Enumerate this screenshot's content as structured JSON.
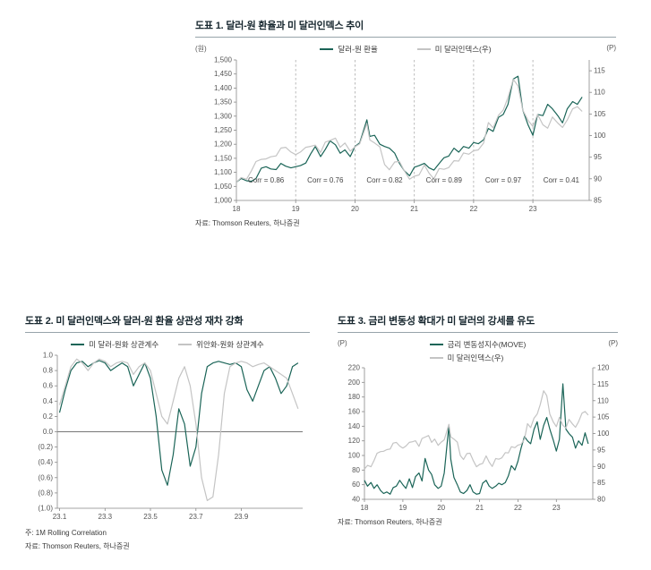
{
  "page": {
    "background": "#ffffff"
  },
  "colors": {
    "primary_line": "#1a6457",
    "secondary_line": "#c4c4c4",
    "grid": "#aaaaaa"
  },
  "chart_data": [
    {
      "type": "line",
      "title": "도표 1. 달러-원 환율과 미 달러인덱스 추이",
      "source": "자료: Thomson Reuters, 하나증권",
      "unit_left": "(원)",
      "unit_right": "(P)",
      "legend_position": "top-center",
      "grid": "vertical-dashed",
      "xlim": [
        2018,
        2023.95
      ],
      "ylim": [
        1000,
        1500
      ],
      "y2lim": [
        85,
        117.5
      ],
      "xticks": [
        {
          "v": 2018,
          "t": "18"
        },
        {
          "v": 2019,
          "t": "19"
        },
        {
          "v": 2020,
          "t": "20"
        },
        {
          "v": 2021,
          "t": "21"
        },
        {
          "v": 2022,
          "t": "22"
        },
        {
          "v": 2023,
          "t": "23"
        }
      ],
      "yticks": [
        {
          "v": 1000,
          "t": "1,000"
        },
        {
          "v": 1050,
          "t": "1,050"
        },
        {
          "v": 1100,
          "t": "1,100"
        },
        {
          "v": 1150,
          "t": "1,150"
        },
        {
          "v": 1200,
          "t": "1,200"
        },
        {
          "v": 1250,
          "t": "1,250"
        },
        {
          "v": 1300,
          "t": "1,300"
        },
        {
          "v": 1350,
          "t": "1,350"
        },
        {
          "v": 1400,
          "t": "1,400"
        },
        {
          "v": 1450,
          "t": "1,450"
        },
        {
          "v": 1500,
          "t": "1,500"
        }
      ],
      "y2ticks": [
        {
          "v": 85,
          "t": "85"
        },
        {
          "v": 90,
          "t": "90"
        },
        {
          "v": 95,
          "t": "95"
        },
        {
          "v": 100,
          "t": "100"
        },
        {
          "v": 105,
          "t": "105"
        },
        {
          "v": 110,
          "t": "110"
        },
        {
          "v": 115,
          "t": "115"
        }
      ],
      "vlines": [
        2019,
        2020,
        2021,
        2022,
        2023
      ],
      "axes": {
        "left": true,
        "right": true,
        "bottom": true
      },
      "annotations": [
        {
          "x": 2018.5,
          "y": 1063,
          "t": "Corr = 0.86"
        },
        {
          "x": 2019.5,
          "y": 1063,
          "t": "Corr = 0.76"
        },
        {
          "x": 2020.5,
          "y": 1063,
          "t": "Corr = 0.82"
        },
        {
          "x": 2021.5,
          "y": 1063,
          "t": "Corr = 0.89"
        },
        {
          "x": 2022.5,
          "y": 1063,
          "t": "Corr = 0.97"
        },
        {
          "x": 2023.48,
          "y": 1063,
          "t": "Corr = 0.41"
        }
      ],
      "x": [
        2018.0,
        2018.08,
        2018.17,
        2018.25,
        2018.33,
        2018.42,
        2018.5,
        2018.58,
        2018.67,
        2018.75,
        2018.83,
        2018.92,
        2019.0,
        2019.08,
        2019.17,
        2019.25,
        2019.33,
        2019.42,
        2019.5,
        2019.58,
        2019.67,
        2019.75,
        2019.83,
        2019.92,
        2020.0,
        2020.08,
        2020.2,
        2020.25,
        2020.33,
        2020.42,
        2020.5,
        2020.58,
        2020.67,
        2020.75,
        2020.83,
        2020.92,
        2021.0,
        2021.08,
        2021.17,
        2021.25,
        2021.33,
        2021.42,
        2021.5,
        2021.58,
        2021.67,
        2021.75,
        2021.83,
        2021.92,
        2022.0,
        2022.08,
        2022.17,
        2022.25,
        2022.33,
        2022.42,
        2022.5,
        2022.58,
        2022.67,
        2022.75,
        2022.83,
        2022.92,
        2023.0,
        2023.08,
        2023.17,
        2023.25,
        2023.33,
        2023.42,
        2023.5,
        2023.58,
        2023.67,
        2023.75,
        2023.83
      ],
      "series": [
        {
          "name": "달러-원 환율",
          "color": "#1a6457",
          "axis": "left",
          "y": [
            1065,
            1078,
            1070,
            1068,
            1078,
            1115,
            1120,
            1112,
            1110,
            1132,
            1122,
            1116,
            1120,
            1124,
            1133,
            1165,
            1192,
            1156,
            1182,
            1212,
            1198,
            1168,
            1180,
            1156,
            1192,
            1205,
            1287,
            1228,
            1232,
            1200,
            1192,
            1186,
            1168,
            1132,
            1106,
            1088,
            1118,
            1124,
            1132,
            1116,
            1108,
            1132,
            1152,
            1158,
            1186,
            1172,
            1192,
            1186,
            1206,
            1202,
            1216,
            1256,
            1246,
            1296,
            1306,
            1342,
            1432,
            1442,
            1322,
            1268,
            1232,
            1306,
            1302,
            1342,
            1326,
            1302,
            1276,
            1326,
            1352,
            1342,
            1368
          ]
        },
        {
          "name": "미 달러인덱스(우)",
          "color": "#c4c4c4",
          "axis": "right",
          "y": [
            89.2,
            90.3,
            89.9,
            91.8,
            94,
            94.5,
            94.6,
            95.1,
            95.3,
            97.1,
            97.3,
            96.2,
            95.6,
            96.2,
            97.3,
            97.5,
            97.8,
            96.1,
            98.5,
            98.9,
            99.4,
            97.3,
            98.3,
            96.4,
            97.4,
            98.1,
            102.8,
            99,
            98.3,
            97.4,
            93.3,
            92.1,
            93.9,
            94,
            91.9,
            89.9,
            90.6,
            90.9,
            93.2,
            91.3,
            90,
            92.4,
            92.2,
            92.6,
            94.2,
            94.1,
            96,
            95.7,
            96.5,
            96.7,
            98.3,
            103,
            101.8,
            104.7,
            105.9,
            108.8,
            113,
            111.5,
            105.9,
            103.5,
            102.1,
            104.9,
            102.5,
            101.7,
            104.3,
            102.9,
            101.9,
            103.6,
            106.2,
            106.7,
            105.6
          ]
        }
      ]
    },
    {
      "type": "line",
      "title": "도표 2. 미 달러인덱스와 달러-원 환율 상관성 재차 강화",
      "note": "주: 1M Rolling Correlation",
      "source": "자료: Thomson Reuters, 하나증권",
      "legend_position": "top-center",
      "grid": "zero-line",
      "xlim": [
        0.9,
        11.7
      ],
      "ylim": [
        -1,
        1
      ],
      "xticks": [
        {
          "v": 1,
          "t": "23.1"
        },
        {
          "v": 3,
          "t": "23.3"
        },
        {
          "v": 5,
          "t": "23.5"
        },
        {
          "v": 7,
          "t": "23.7"
        },
        {
          "v": 9,
          "t": "23.9"
        }
      ],
      "yticks": [
        {
          "v": 1,
          "t": "1.0"
        },
        {
          "v": 0.8,
          "t": "0.8"
        },
        {
          "v": 0.6,
          "t": "0.6"
        },
        {
          "v": 0.4,
          "t": "0.4"
        },
        {
          "v": 0.2,
          "t": "0.2"
        },
        {
          "v": 0,
          "t": "0.0"
        },
        {
          "v": -0.2,
          "t": "(0.2)"
        },
        {
          "v": -0.4,
          "t": "(0.4)"
        },
        {
          "v": -0.6,
          "t": "(0.6)"
        },
        {
          "v": -0.8,
          "t": "(0.8)"
        },
        {
          "v": -1,
          "t": "(1.0)"
        }
      ],
      "hlines": [
        0
      ],
      "axes": {
        "left": true,
        "bottom": true
      },
      "x": [
        1,
        1.25,
        1.5,
        1.75,
        2,
        2.25,
        2.5,
        2.75,
        3,
        3.25,
        3.5,
        3.75,
        4,
        4.25,
        4.5,
        4.75,
        5,
        5.25,
        5.5,
        5.75,
        6,
        6.25,
        6.5,
        6.75,
        7,
        7.25,
        7.5,
        7.75,
        8,
        8.25,
        8.5,
        8.75,
        9,
        9.25,
        9.5,
        9.75,
        10,
        10.25,
        10.5,
        10.75,
        11,
        11.25,
        11.5
      ],
      "series": [
        {
          "name": "미 달러-원화 상관계수",
          "color": "#1a6457",
          "axis": "left",
          "y": [
            0.25,
            0.55,
            0.8,
            0.9,
            0.92,
            0.85,
            0.9,
            0.93,
            0.9,
            0.8,
            0.85,
            0.9,
            0.85,
            0.6,
            0.75,
            0.9,
            0.7,
            0.2,
            -0.5,
            -0.7,
            -0.3,
            0.3,
            0.1,
            -0.45,
            -0.2,
            0.5,
            0.85,
            0.9,
            0.92,
            0.9,
            0.88,
            0.9,
            0.85,
            0.55,
            0.4,
            0.6,
            0.8,
            0.85,
            0.7,
            0.5,
            0.6,
            0.85,
            0.9
          ]
        },
        {
          "name": "위안화-원화 상관계수",
          "color": "#c4c4c4",
          "axis": "left",
          "y": [
            0.35,
            0.6,
            0.85,
            0.95,
            0.9,
            0.8,
            0.9,
            0.95,
            0.92,
            0.85,
            0.9,
            0.92,
            0.9,
            0.75,
            0.85,
            0.9,
            0.8,
            0.5,
            0.2,
            0.1,
            0.4,
            0.7,
            0.85,
            0.6,
            0.1,
            -0.6,
            -0.9,
            -0.85,
            -0.3,
            0.5,
            0.85,
            0.9,
            0.92,
            0.9,
            0.85,
            0.88,
            0.9,
            0.85,
            0.8,
            0.75,
            0.7,
            0.5,
            0.3
          ]
        }
      ]
    },
    {
      "type": "line",
      "title": "도표 3. 금리 변동성 확대가 미 달러의 강세를 유도",
      "source": "자료: Thomson Reuters, 하나증권",
      "unit_left": "(P)",
      "unit_right": "(P)",
      "legend_position": "top-center-stacked",
      "grid": "none",
      "xlim": [
        2018,
        2023.95
      ],
      "ylim": [
        40,
        220
      ],
      "y2lim": [
        80,
        120
      ],
      "xticks": [
        {
          "v": 2018,
          "t": "18"
        },
        {
          "v": 2019,
          "t": "19"
        },
        {
          "v": 2020,
          "t": "20"
        },
        {
          "v": 2021,
          "t": "21"
        },
        {
          "v": 2022,
          "t": "22"
        },
        {
          "v": 2023,
          "t": "23"
        }
      ],
      "yticks": [
        {
          "v": 40,
          "t": "40"
        },
        {
          "v": 60,
          "t": "60"
        },
        {
          "v": 80,
          "t": "80"
        },
        {
          "v": 100,
          "t": "100"
        },
        {
          "v": 120,
          "t": "120"
        },
        {
          "v": 140,
          "t": "140"
        },
        {
          "v": 160,
          "t": "160"
        },
        {
          "v": 180,
          "t": "180"
        },
        {
          "v": 200,
          "t": "200"
        },
        {
          "v": 220,
          "t": "220"
        }
      ],
      "y2ticks": [
        {
          "v": 80,
          "t": "80"
        },
        {
          "v": 85,
          "t": "85"
        },
        {
          "v": 90,
          "t": "90"
        },
        {
          "v": 95,
          "t": "95"
        },
        {
          "v": 100,
          "t": "100"
        },
        {
          "v": 105,
          "t": "105"
        },
        {
          "v": 110,
          "t": "110"
        },
        {
          "v": 115,
          "t": "115"
        },
        {
          "v": 120,
          "t": "120"
        }
      ],
      "axes": {
        "left": true,
        "right": true,
        "bottom": true
      },
      "x": [
        2018.0,
        2018.08,
        2018.17,
        2018.25,
        2018.33,
        2018.42,
        2018.5,
        2018.58,
        2018.67,
        2018.75,
        2018.83,
        2018.92,
        2019.0,
        2019.08,
        2019.17,
        2019.25,
        2019.33,
        2019.42,
        2019.5,
        2019.58,
        2019.67,
        2019.75,
        2019.83,
        2019.92,
        2020.0,
        2020.08,
        2020.2,
        2020.25,
        2020.33,
        2020.42,
        2020.5,
        2020.58,
        2020.67,
        2020.75,
        2020.83,
        2020.92,
        2021.0,
        2021.08,
        2021.17,
        2021.25,
        2021.33,
        2021.42,
        2021.5,
        2021.58,
        2021.67,
        2021.75,
        2021.83,
        2021.92,
        2022.0,
        2022.08,
        2022.17,
        2022.25,
        2022.33,
        2022.42,
        2022.5,
        2022.58,
        2022.67,
        2022.75,
        2022.83,
        2022.92,
        2023.0,
        2023.08,
        2023.17,
        2023.25,
        2023.33,
        2023.42,
        2023.5,
        2023.58,
        2023.67,
        2023.75,
        2023.83
      ],
      "series": [
        {
          "name": "금리 변동성지수(MOVE)",
          "color": "#1a6457",
          "axis": "left",
          "y": [
            66,
            58,
            63,
            55,
            60,
            52,
            48,
            50,
            47,
            56,
            58,
            66,
            60,
            55,
            68,
            56,
            71,
            76,
            65,
            96,
            80,
            74,
            60,
            55,
            58,
            76,
            141,
            95,
            70,
            60,
            50,
            48,
            52,
            60,
            50,
            47,
            48,
            62,
            66,
            58,
            55,
            58,
            62,
            60,
            63,
            72,
            86,
            80,
            92,
            110,
            126,
            120,
            116,
            136,
            146,
            122,
            141,
            152,
            136,
            121,
            106,
            122,
            198,
            136,
            130,
            125,
            110,
            120,
            114,
            131,
            116
          ]
        },
        {
          "name": "미 달러인덱스(우)",
          "color": "#c4c4c4",
          "axis": "right",
          "y": [
            89.2,
            90.3,
            89.9,
            91.8,
            94,
            94.5,
            94.6,
            95.1,
            95.3,
            97.1,
            97.3,
            96.2,
            95.6,
            96.2,
            97.3,
            97.5,
            97.8,
            96.1,
            98.5,
            98.9,
            99.4,
            97.3,
            98.3,
            96.4,
            97.4,
            98.1,
            102.8,
            99,
            98.3,
            97.4,
            93.3,
            92.1,
            93.9,
            94,
            91.9,
            89.9,
            90.6,
            90.9,
            93.2,
            91.3,
            90,
            92.4,
            92.2,
            92.6,
            94.2,
            94.1,
            96,
            95.7,
            96.5,
            96.7,
            98.3,
            103,
            101.8,
            104.7,
            105.9,
            108.8,
            113,
            111.5,
            105.9,
            103.5,
            102.1,
            104.9,
            102.5,
            101.7,
            104.3,
            102.9,
            101.9,
            103.6,
            106.2,
            106.7,
            105.6
          ]
        }
      ]
    }
  ]
}
